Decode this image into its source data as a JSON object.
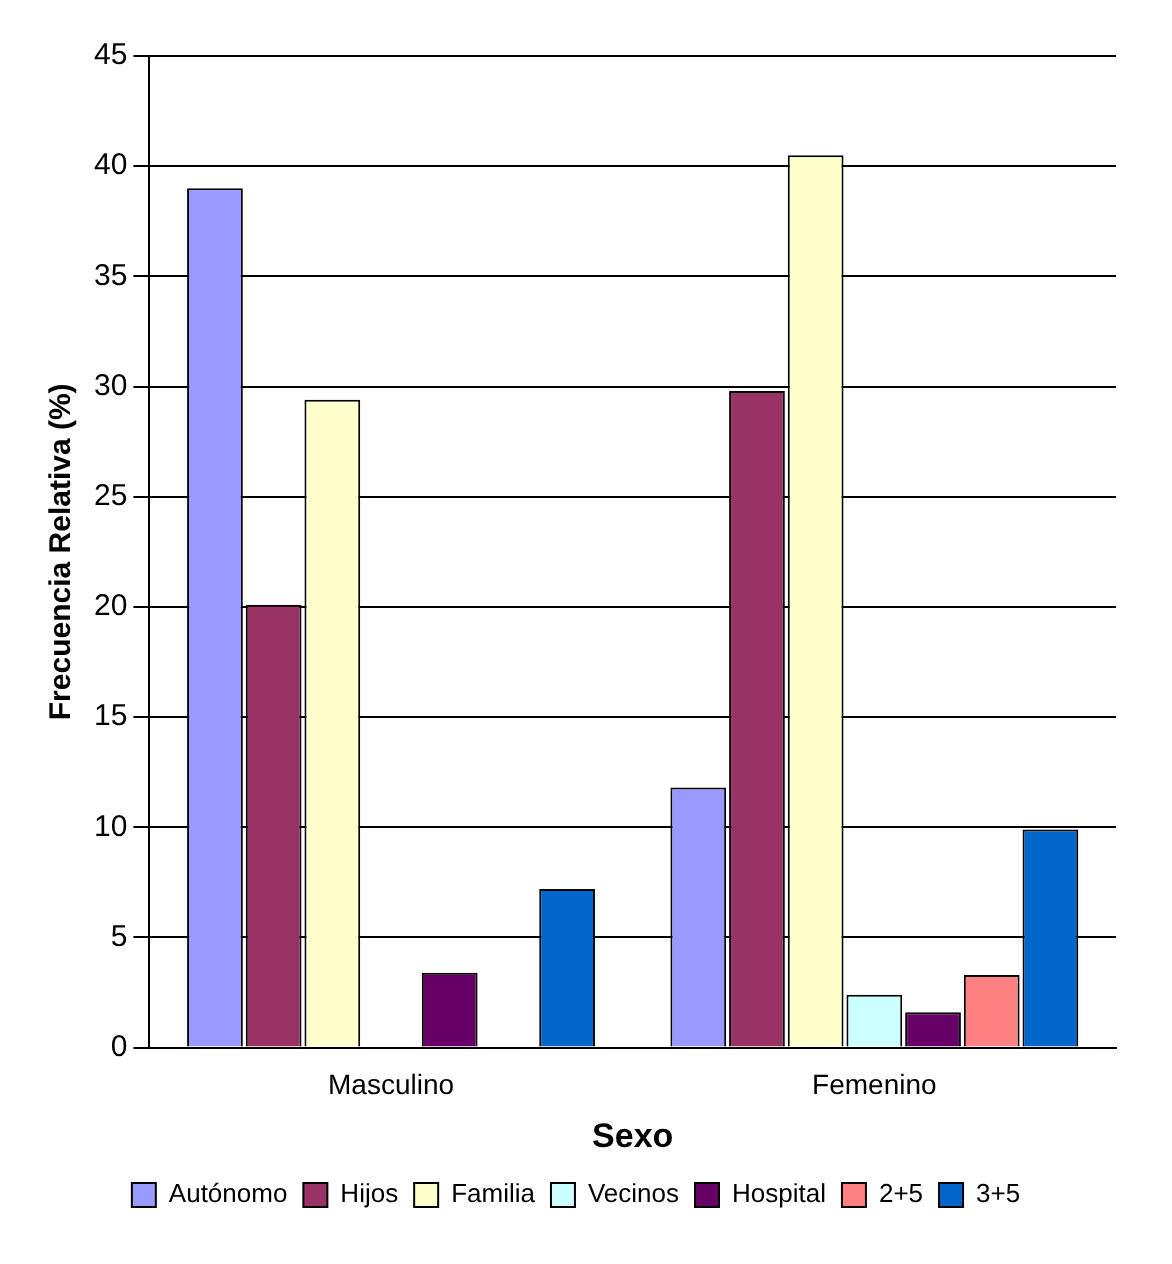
{
  "chart_data": {
    "type": "bar",
    "xlabel": "Sexo",
    "ylabel": "Frecuencia Relativa (%)",
    "categories": [
      "Masculino",
      "Femenino"
    ],
    "series": [
      {
        "name": "Autónomo",
        "color": "#9999ff",
        "values": [
          39,
          11.8
        ]
      },
      {
        "name": "Hijos",
        "color": "#993366",
        "values": [
          20.1,
          29.8
        ]
      },
      {
        "name": "Familia",
        "color": "#ffffcc",
        "values": [
          29.4,
          40.5
        ]
      },
      {
        "name": "Vecinos",
        "color": "#ccffff",
        "values": [
          0,
          2.4
        ]
      },
      {
        "name": "Hospital",
        "color": "#660066",
        "values": [
          3.4,
          1.6
        ]
      },
      {
        "name": "2+5",
        "color": "#ff8080",
        "values": [
          0,
          3.3
        ]
      },
      {
        "name": "3+5",
        "color": "#0066cc",
        "values": [
          7.2,
          9.9
        ]
      }
    ],
    "ylim": [
      0,
      45
    ],
    "yticks": [
      0,
      5,
      10,
      15,
      20,
      25,
      30,
      35,
      40,
      45
    ],
    "grid": "y",
    "legend": "bottom"
  }
}
